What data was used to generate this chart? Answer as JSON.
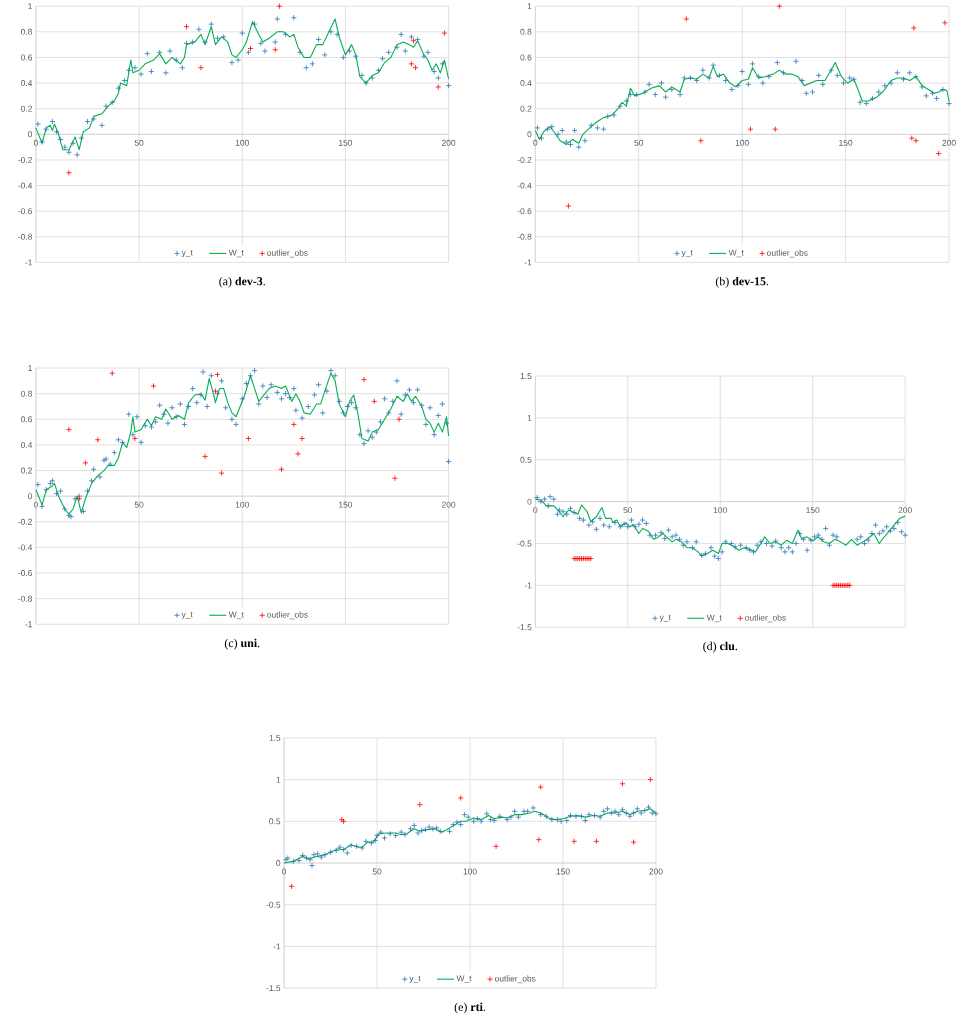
{
  "chart_data": [
    {
      "type": "scatter",
      "title": "(a) **dev-3**.",
      "xlim": [
        0,
        200
      ],
      "xticks": [
        0,
        50,
        100,
        150,
        200
      ],
      "ylim": [
        -1,
        1
      ],
      "yticks": [
        -1,
        -0.8,
        -0.6,
        -0.4,
        -0.2,
        0,
        0.2,
        0.4,
        0.6,
        0.8,
        1
      ],
      "grid": true,
      "legend": "bottom",
      "series": [
        {
          "name": "y_t",
          "type": "scatter",
          "marker": "cross",
          "color": "#2e75b6",
          "x": [
            1,
            3,
            5,
            8,
            10,
            12,
            14,
            16,
            18,
            20,
            22,
            25,
            28,
            32,
            34,
            37,
            40,
            43,
            45,
            48,
            51,
            54,
            56,
            60,
            63,
            65,
            68,
            71,
            73,
            76,
            79,
            82,
            85,
            88,
            91,
            95,
            98,
            100,
            103,
            106,
            109,
            111,
            116,
            117,
            121,
            125,
            128,
            131,
            134,
            137,
            140,
            143,
            146,
            149,
            152,
            155,
            158,
            160,
            163,
            166,
            168,
            171,
            175,
            177,
            179,
            182,
            185,
            188,
            190,
            193,
            195,
            197,
            200
          ],
          "values": [
            0.08,
            -0.06,
            0.04,
            0.1,
            0.02,
            -0.04,
            -0.1,
            -0.14,
            -0.07,
            -0.16,
            -0.03,
            0.1,
            0.12,
            0.07,
            0.22,
            0.25,
            0.36,
            0.42,
            0.5,
            0.52,
            0.47,
            0.63,
            0.49,
            0.64,
            0.48,
            0.65,
            0.58,
            0.52,
            0.71,
            0.72,
            0.82,
            0.72,
            0.86,
            0.75,
            0.76,
            0.56,
            0.58,
            0.79,
            0.64,
            0.86,
            0.71,
            0.65,
            0.72,
            0.9,
            0.78,
            0.91,
            0.64,
            0.52,
            0.55,
            0.74,
            0.62,
            0.8,
            0.78,
            0.6,
            0.65,
            0.61,
            0.46,
            0.4,
            0.44,
            0.5,
            0.59,
            0.64,
            0.68,
            0.78,
            0.65,
            0.76,
            0.74,
            0.61,
            0.64,
            0.49,
            0.44,
            0.55,
            0.38
          ]
        },
        {
          "name": "W_t",
          "type": "line",
          "marker": "none",
          "color": "#00b050",
          "x": [
            0,
            3,
            5,
            7,
            8,
            9,
            11,
            13,
            16,
            19,
            21,
            23,
            26,
            28,
            32,
            35,
            38,
            40,
            41,
            44,
            46,
            47,
            50,
            53,
            57,
            60,
            63,
            66,
            70,
            72,
            73,
            77,
            80,
            82,
            85,
            87,
            90,
            93,
            95,
            97,
            100,
            102,
            105,
            108,
            110,
            113,
            117,
            120,
            123,
            125,
            127,
            130,
            133,
            136,
            139,
            142,
            145,
            147,
            150,
            153,
            155,
            157,
            160,
            163,
            166,
            169,
            172,
            175,
            178,
            181,
            183,
            185,
            188,
            190,
            192,
            194,
            196,
            198,
            200
          ],
          "values": [
            0.05,
            -0.07,
            0.05,
            0.07,
            0.03,
            0.08,
            0.0,
            -0.12,
            -0.12,
            -0.02,
            -0.12,
            0.02,
            0.05,
            0.14,
            0.16,
            0.22,
            0.26,
            0.32,
            0.4,
            0.38,
            0.58,
            0.48,
            0.5,
            0.55,
            0.58,
            0.63,
            0.55,
            0.6,
            0.55,
            0.6,
            0.7,
            0.72,
            0.78,
            0.7,
            0.84,
            0.7,
            0.76,
            0.72,
            0.62,
            0.6,
            0.66,
            0.72,
            0.88,
            0.78,
            0.72,
            0.75,
            0.8,
            0.8,
            0.76,
            0.78,
            0.68,
            0.6,
            0.6,
            0.7,
            0.7,
            0.8,
            0.9,
            0.76,
            0.62,
            0.7,
            0.62,
            0.45,
            0.4,
            0.46,
            0.48,
            0.56,
            0.6,
            0.7,
            0.72,
            0.7,
            0.68,
            0.73,
            0.62,
            0.58,
            0.5,
            0.55,
            0.48,
            0.58,
            0.43
          ]
        },
        {
          "name": "outlier_obs",
          "type": "scatter",
          "marker": "cross",
          "color": "#ff0000",
          "x": [
            16,
            73,
            80,
            104,
            116,
            118,
            182,
            183,
            184,
            195,
            198
          ],
          "values": [
            -0.3,
            0.84,
            0.52,
            0.67,
            0.66,
            1.0,
            0.55,
            0.73,
            0.52,
            0.37,
            0.79
          ]
        }
      ]
    },
    {
      "type": "scatter",
      "title": "(b) **dev-15**.",
      "xlim": [
        0,
        200
      ],
      "xticks": [
        0,
        50,
        100,
        150,
        200
      ],
      "ylim": [
        -1,
        1
      ],
      "yticks": [
        -1,
        -0.8,
        -0.6,
        -0.4,
        -0.2,
        0,
        0.2,
        0.4,
        0.6,
        0.8,
        1
      ],
      "grid": true,
      "legend": "bottom",
      "series": [
        {
          "name": "y_t",
          "type": "scatter",
          "marker": "cross",
          "color": "#2e75b6",
          "x": [
            1,
            3,
            6,
            8,
            11,
            13,
            15,
            17,
            19,
            21,
            24,
            27,
            30,
            33,
            35,
            38,
            41,
            44,
            46,
            49,
            53,
            55,
            58,
            61,
            63,
            66,
            70,
            72,
            75,
            78,
            81,
            84,
            86,
            89,
            92,
            95,
            98,
            100,
            103,
            105,
            108,
            110,
            113,
            117,
            120,
            126,
            129,
            131,
            134,
            137,
            139,
            143,
            146,
            149,
            152,
            154,
            157,
            160,
            163,
            166,
            169,
            172,
            175,
            178,
            181,
            184,
            187,
            189,
            192,
            194,
            197,
            200
          ],
          "values": [
            0.05,
            -0.03,
            0.04,
            0.06,
            0.0,
            0.03,
            -0.06,
            -0.08,
            0.03,
            -0.1,
            -0.05,
            0.07,
            0.05,
            0.04,
            0.14,
            0.15,
            0.22,
            0.26,
            0.31,
            0.31,
            0.33,
            0.39,
            0.31,
            0.4,
            0.29,
            0.35,
            0.31,
            0.44,
            0.44,
            0.42,
            0.5,
            0.44,
            0.54,
            0.46,
            0.42,
            0.35,
            0.38,
            0.49,
            0.39,
            0.55,
            0.45,
            0.4,
            0.45,
            0.56,
            0.48,
            0.57,
            0.42,
            0.32,
            0.33,
            0.46,
            0.39,
            0.5,
            0.46,
            0.4,
            0.44,
            0.43,
            0.25,
            0.24,
            0.28,
            0.33,
            0.38,
            0.4,
            0.48,
            0.43,
            0.48,
            0.45,
            0.37,
            0.3,
            0.32,
            0.28,
            0.35,
            0.24
          ]
        },
        {
          "name": "W_t",
          "type": "line",
          "marker": "none",
          "color": "#00b050",
          "x": [
            0,
            2,
            4,
            7,
            9,
            12,
            15,
            18,
            21,
            23,
            27,
            30,
            33,
            37,
            40,
            42,
            44,
            46,
            48,
            52,
            56,
            60,
            63,
            66,
            70,
            72,
            75,
            78,
            81,
            84,
            86,
            88,
            91,
            94,
            97,
            100,
            103,
            105,
            108,
            111,
            115,
            118,
            121,
            124,
            127,
            130,
            133,
            136,
            140,
            143,
            145,
            148,
            151,
            154,
            156,
            158,
            161,
            165,
            168,
            172,
            175,
            178,
            181,
            184,
            187,
            190,
            193,
            195,
            197,
            199,
            200
          ],
          "values": [
            0.03,
            -0.04,
            0.02,
            0.06,
            0.02,
            -0.05,
            -0.08,
            -0.04,
            -0.07,
            0.0,
            0.06,
            0.1,
            0.13,
            0.15,
            0.2,
            0.25,
            0.22,
            0.36,
            0.3,
            0.32,
            0.36,
            0.38,
            0.33,
            0.37,
            0.33,
            0.43,
            0.44,
            0.43,
            0.47,
            0.44,
            0.53,
            0.45,
            0.47,
            0.4,
            0.37,
            0.42,
            0.43,
            0.52,
            0.44,
            0.45,
            0.47,
            0.5,
            0.47,
            0.47,
            0.45,
            0.38,
            0.4,
            0.42,
            0.42,
            0.5,
            0.56,
            0.45,
            0.4,
            0.43,
            0.35,
            0.26,
            0.26,
            0.29,
            0.33,
            0.42,
            0.44,
            0.44,
            0.42,
            0.45,
            0.38,
            0.35,
            0.32,
            0.33,
            0.35,
            0.34,
            0.26
          ]
        },
        {
          "name": "outlier_obs",
          "type": "scatter",
          "marker": "cross",
          "color": "#ff0000",
          "x": [
            16,
            73,
            80,
            104,
            116,
            118,
            182,
            183,
            184,
            195,
            198
          ],
          "values": [
            -0.56,
            0.9,
            -0.05,
            0.04,
            0.04,
            1.0,
            -0.03,
            0.83,
            -0.05,
            -0.15,
            0.87
          ]
        }
      ]
    },
    {
      "type": "scatter",
      "title": "(c) **uni**.",
      "xlim": [
        0,
        200
      ],
      "xticks": [
        0,
        50,
        100,
        150,
        200
      ],
      "ylim": [
        -1,
        1
      ],
      "yticks": [
        -1,
        -0.8,
        -0.6,
        -0.4,
        -0.2,
        0,
        0.2,
        0.4,
        0.6,
        0.8,
        1
      ],
      "grid": true,
      "legend": "bottom",
      "series": [
        {
          "name": "y_t",
          "type": "scatter",
          "marker": "cross",
          "color": "#2e75b6",
          "x": [
            1,
            3,
            5,
            7,
            8,
            10,
            12,
            14,
            16,
            17,
            19,
            21,
            23,
            25,
            27,
            28,
            31,
            33,
            34,
            36,
            38,
            40,
            42,
            45,
            47,
            49,
            51,
            53,
            56,
            58,
            60,
            62,
            64,
            66,
            68,
            70,
            72,
            74,
            76,
            78,
            80,
            81,
            83,
            85,
            88,
            90,
            92,
            95,
            97,
            100,
            102,
            104,
            106,
            108,
            110,
            112,
            114,
            117,
            119,
            121,
            123,
            125,
            126,
            129,
            132,
            135,
            137,
            139,
            141,
            143,
            145,
            147,
            149,
            151,
            153,
            155,
            157,
            159,
            161,
            163,
            165,
            167,
            169,
            171,
            173,
            175,
            177,
            179,
            181,
            183,
            185,
            187,
            189,
            191,
            193,
            195,
            197,
            199,
            200
          ],
          "values": [
            0.09,
            -0.08,
            0.05,
            0.1,
            0.12,
            0.02,
            0.04,
            -0.1,
            -0.15,
            -0.16,
            -0.02,
            0.0,
            -0.12,
            0.04,
            0.12,
            0.21,
            0.15,
            0.28,
            0.29,
            0.25,
            0.34,
            0.44,
            0.42,
            0.64,
            0.48,
            0.62,
            0.42,
            0.55,
            0.54,
            0.58,
            0.71,
            0.64,
            0.57,
            0.69,
            0.62,
            0.72,
            0.56,
            0.7,
            0.84,
            0.73,
            0.79,
            0.97,
            0.7,
            0.94,
            0.8,
            0.9,
            0.69,
            0.6,
            0.56,
            0.76,
            0.88,
            0.94,
            0.98,
            0.72,
            0.86,
            0.77,
            0.87,
            0.81,
            0.76,
            0.8,
            0.77,
            0.84,
            0.67,
            0.61,
            0.7,
            0.79,
            0.87,
            0.65,
            0.82,
            0.98,
            0.94,
            0.74,
            0.65,
            0.7,
            0.73,
            0.69,
            0.48,
            0.41,
            0.51,
            0.46,
            0.5,
            0.58,
            0.76,
            0.65,
            0.74,
            0.9,
            0.64,
            0.79,
            0.83,
            0.73,
            0.83,
            0.71,
            0.56,
            0.69,
            0.48,
            0.63,
            0.72,
            0.57,
            0.27
          ]
        },
        {
          "name": "W_t",
          "type": "line",
          "marker": "none",
          "color": "#00b050",
          "x": [
            0,
            3,
            5,
            8,
            9,
            11,
            14,
            16,
            18,
            20,
            22,
            24,
            27,
            30,
            33,
            35,
            38,
            40,
            42,
            44,
            46,
            47,
            48,
            51,
            54,
            56,
            58,
            61,
            63,
            66,
            69,
            72,
            74,
            77,
            80,
            82,
            84,
            86,
            87,
            89,
            91,
            93,
            95,
            97,
            99,
            101,
            104,
            106,
            108,
            111,
            113,
            116,
            119,
            121,
            124,
            126,
            128,
            130,
            133,
            136,
            138,
            140,
            143,
            145,
            147,
            150,
            152,
            154,
            156,
            158,
            161,
            163,
            166,
            169,
            172,
            175,
            178,
            180,
            182,
            184,
            187,
            189,
            191,
            193,
            195,
            197,
            199,
            200
          ],
          "values": [
            0.05,
            -0.07,
            0.05,
            0.08,
            0.1,
            0.0,
            -0.1,
            -0.14,
            -0.1,
            0.0,
            -0.13,
            -0.02,
            0.1,
            0.16,
            0.2,
            0.24,
            0.24,
            0.3,
            0.42,
            0.38,
            0.5,
            0.62,
            0.5,
            0.52,
            0.6,
            0.55,
            0.62,
            0.6,
            0.68,
            0.6,
            0.63,
            0.6,
            0.73,
            0.79,
            0.8,
            0.75,
            0.92,
            0.8,
            0.73,
            0.84,
            0.84,
            0.73,
            0.65,
            0.62,
            0.7,
            0.78,
            0.94,
            0.84,
            0.74,
            0.8,
            0.84,
            0.86,
            0.84,
            0.86,
            0.74,
            0.8,
            0.74,
            0.65,
            0.64,
            0.72,
            0.72,
            0.82,
            0.96,
            0.9,
            0.72,
            0.62,
            0.74,
            0.79,
            0.65,
            0.45,
            0.43,
            0.5,
            0.52,
            0.6,
            0.68,
            0.78,
            0.74,
            0.8,
            0.74,
            0.78,
            0.7,
            0.6,
            0.57,
            0.5,
            0.57,
            0.5,
            0.62,
            0.47
          ]
        },
        {
          "name": "outlier_obs",
          "type": "scatter",
          "marker": "cross",
          "color": "#ff0000",
          "x": [
            16,
            21,
            24,
            30,
            37,
            48,
            57,
            82,
            87,
            88,
            90,
            103,
            119,
            125,
            127,
            129,
            159,
            164,
            174,
            176
          ],
          "values": [
            0.52,
            -0.02,
            0.26,
            0.44,
            0.96,
            0.45,
            0.86,
            0.31,
            0.82,
            0.95,
            0.18,
            0.45,
            0.21,
            0.56,
            0.33,
            0.45,
            0.91,
            0.74,
            0.14,
            0.6
          ]
        }
      ]
    },
    {
      "type": "scatter",
      "title": "(d) **clu**.",
      "xlim": [
        0,
        200
      ],
      "xticks": [
        0,
        50,
        100,
        150,
        200
      ],
      "ylim": [
        -1.5,
        1.5
      ],
      "yticks": [
        -1.5,
        -1,
        -0.5,
        0,
        0.5,
        1,
        1.5
      ],
      "grid": true,
      "legend": "bottom",
      "series": [
        {
          "name": "y_t",
          "type": "scatter",
          "marker": "cross",
          "color": "#2e75b6",
          "x": [
            1,
            3,
            5,
            7,
            8,
            10,
            12,
            13,
            15,
            17,
            19,
            21,
            24,
            26,
            29,
            31,
            33,
            35,
            37,
            40,
            43,
            46,
            48,
            50,
            52,
            54,
            56,
            58,
            60,
            62,
            65,
            68,
            70,
            72,
            74,
            76,
            78,
            80,
            82,
            85,
            87,
            90,
            92,
            95,
            97,
            99,
            101,
            103,
            106,
            108,
            111,
            114,
            116,
            118,
            120,
            122,
            125,
            128,
            130,
            133,
            135,
            137,
            139,
            141,
            143,
            145,
            147,
            149,
            151,
            153,
            155,
            157,
            159,
            161,
            163,
            174,
            176,
            178,
            180,
            182,
            184,
            186,
            188,
            190,
            192,
            194,
            196,
            198,
            200
          ],
          "values": [
            0.05,
            0.0,
            0.03,
            -0.05,
            0.06,
            0.03,
            -0.15,
            -0.1,
            -0.12,
            -0.15,
            -0.08,
            -0.13,
            -0.2,
            -0.22,
            -0.28,
            -0.24,
            -0.33,
            -0.2,
            -0.28,
            -0.3,
            -0.25,
            -0.3,
            -0.27,
            -0.3,
            -0.22,
            -0.3,
            -0.27,
            -0.22,
            -0.26,
            -0.4,
            -0.4,
            -0.37,
            -0.44,
            -0.34,
            -0.42,
            -0.4,
            -0.45,
            -0.52,
            -0.48,
            -0.55,
            -0.48,
            -0.64,
            -0.62,
            -0.55,
            -0.65,
            -0.68,
            -0.6,
            -0.48,
            -0.5,
            -0.54,
            -0.52,
            -0.55,
            -0.58,
            -0.6,
            -0.52,
            -0.48,
            -0.5,
            -0.53,
            -0.47,
            -0.55,
            -0.6,
            -0.55,
            -0.6,
            -0.5,
            -0.38,
            -0.45,
            -0.58,
            -0.46,
            -0.42,
            -0.4,
            -0.45,
            -0.32,
            -0.52,
            -0.4,
            -0.42,
            -0.45,
            -0.42,
            -0.5,
            -0.46,
            -0.38,
            -0.28,
            -0.38,
            -0.35,
            -0.3,
            -0.35,
            -0.32,
            -0.25,
            -0.36,
            -0.4
          ]
        },
        {
          "name": "W_t",
          "type": "line",
          "marker": "none",
          "color": "#00b050",
          "x": [
            0,
            3,
            6,
            10,
            13,
            15,
            18,
            20,
            23,
            25,
            28,
            30,
            33,
            36,
            38,
            41,
            42,
            44,
            46,
            49,
            51,
            53,
            56,
            58,
            61,
            64,
            66,
            69,
            71,
            74,
            76,
            79,
            82,
            85,
            88,
            90,
            93,
            96,
            99,
            101,
            104,
            107,
            110,
            113,
            116,
            119,
            122,
            124,
            127,
            130,
            133,
            136,
            139,
            142,
            144,
            147,
            150,
            153,
            156,
            159,
            162,
            165,
            168,
            171,
            174,
            177,
            180,
            183,
            186,
            188,
            191,
            194,
            197,
            200
          ],
          "values": [
            0.03,
            0.02,
            -0.05,
            -0.05,
            -0.12,
            -0.18,
            -0.1,
            -0.12,
            -0.15,
            -0.04,
            -0.12,
            -0.24,
            -0.18,
            -0.07,
            -0.2,
            -0.2,
            -0.25,
            -0.22,
            -0.3,
            -0.25,
            -0.3,
            -0.27,
            -0.38,
            -0.32,
            -0.35,
            -0.45,
            -0.43,
            -0.38,
            -0.42,
            -0.48,
            -0.45,
            -0.48,
            -0.55,
            -0.55,
            -0.6,
            -0.65,
            -0.62,
            -0.58,
            -0.62,
            -0.5,
            -0.5,
            -0.53,
            -0.58,
            -0.55,
            -0.57,
            -0.6,
            -0.5,
            -0.42,
            -0.5,
            -0.48,
            -0.52,
            -0.46,
            -0.5,
            -0.34,
            -0.44,
            -0.42,
            -0.47,
            -0.42,
            -0.48,
            -0.5,
            -0.45,
            -0.48,
            -0.52,
            -0.45,
            -0.52,
            -0.48,
            -0.44,
            -0.38,
            -0.5,
            -0.44,
            -0.36,
            -0.28,
            -0.2,
            -0.17
          ]
        },
        {
          "name": "outlier_obs",
          "type": "scatter",
          "marker": "cross",
          "color": "#ff0000",
          "x": [
            21,
            22,
            23,
            24,
            25,
            26,
            27,
            28,
            29,
            30,
            161,
            162,
            163,
            164,
            165,
            166,
            167,
            168,
            169,
            170
          ],
          "values": [
            -0.68,
            -0.68,
            -0.68,
            -0.68,
            -0.68,
            -0.68,
            -0.68,
            -0.68,
            -0.68,
            -0.68,
            -1,
            -1,
            -1,
            -1,
            -1,
            -1,
            -1,
            -1,
            -1,
            -1
          ]
        }
      ]
    },
    {
      "type": "scatter",
      "title": "(e) **rti**.",
      "xlim": [
        0,
        200
      ],
      "xticks": [
        0,
        50,
        100,
        150,
        200
      ],
      "ylim": [
        -1.5,
        1.5
      ],
      "yticks": [
        -1.5,
        -1,
        -0.5,
        0,
        0.5,
        1,
        1.5
      ],
      "grid": true,
      "legend": "bottom",
      "series": [
        {
          "name": "y_t",
          "type": "scatter",
          "marker": "cross",
          "color": "#2e75b6",
          "x": [
            1,
            2,
            5,
            8,
            10,
            12,
            14,
            15,
            16,
            18,
            20,
            22,
            25,
            28,
            30,
            32,
            34,
            36,
            39,
            42,
            44,
            47,
            49,
            50,
            52,
            54,
            57,
            60,
            63,
            65,
            68,
            70,
            72,
            74,
            76,
            78,
            80,
            82,
            84,
            89,
            91,
            93,
            95,
            97,
            99,
            102,
            104,
            106,
            109,
            111,
            113,
            116,
            120,
            122,
            124,
            126,
            129,
            131,
            134,
            138,
            141,
            144,
            147,
            149,
            152,
            154,
            157,
            160,
            162,
            164,
            167,
            170,
            172,
            174,
            176,
            178,
            180,
            182,
            184,
            186,
            188,
            190,
            192,
            194,
            196,
            198,
            200
          ],
          "values": [
            0.04,
            0.06,
            0.02,
            0.03,
            0.09,
            0.06,
            0.04,
            -0.03,
            0.1,
            0.11,
            0.07,
            0.1,
            0.13,
            0.15,
            0.19,
            0.16,
            0.12,
            0.21,
            0.2,
            0.18,
            0.26,
            0.24,
            0.27,
            0.33,
            0.37,
            0.3,
            0.35,
            0.33,
            0.37,
            0.34,
            0.41,
            0.45,
            0.36,
            0.39,
            0.4,
            0.43,
            0.41,
            0.42,
            0.38,
            0.38,
            0.46,
            0.49,
            0.46,
            0.58,
            0.55,
            0.5,
            0.53,
            0.5,
            0.59,
            0.52,
            0.51,
            0.56,
            0.52,
            0.55,
            0.62,
            0.55,
            0.62,
            0.62,
            0.66,
            0.58,
            0.56,
            0.52,
            0.52,
            0.5,
            0.51,
            0.57,
            0.56,
            0.56,
            0.51,
            0.58,
            0.57,
            0.55,
            0.62,
            0.65,
            0.6,
            0.62,
            0.58,
            0.64,
            0.6,
            0.56,
            0.6,
            0.65,
            0.6,
            0.63,
            0.67,
            0.6,
            0.59
          ]
        },
        {
          "name": "W_t",
          "type": "line",
          "marker": "none",
          "color": "#00b050",
          "x": [
            0,
            5,
            10,
            13,
            18,
            22,
            25,
            29,
            32,
            36,
            40,
            42,
            45,
            48,
            51,
            55,
            60,
            63,
            66,
            70,
            73,
            77,
            81,
            85,
            89,
            92,
            95,
            98,
            102,
            106,
            110,
            113,
            117,
            120,
            124,
            128,
            132,
            135,
            139,
            142,
            146,
            150,
            154,
            158,
            162,
            166,
            170,
            174,
            178,
            182,
            186,
            190,
            194,
            197,
            200
          ],
          "values": [
            0.0,
            0.02,
            0.08,
            0.05,
            0.08,
            0.1,
            0.13,
            0.17,
            0.16,
            0.22,
            0.19,
            0.19,
            0.25,
            0.25,
            0.35,
            0.36,
            0.36,
            0.34,
            0.35,
            0.41,
            0.38,
            0.4,
            0.41,
            0.37,
            0.42,
            0.46,
            0.5,
            0.5,
            0.54,
            0.52,
            0.57,
            0.53,
            0.55,
            0.54,
            0.58,
            0.58,
            0.6,
            0.62,
            0.59,
            0.54,
            0.52,
            0.53,
            0.56,
            0.57,
            0.55,
            0.57,
            0.56,
            0.6,
            0.6,
            0.62,
            0.58,
            0.62,
            0.63,
            0.65,
            0.6
          ]
        },
        {
          "name": "outlier_obs",
          "type": "scatter",
          "marker": "cross",
          "color": "#ff0000",
          "x": [
            4,
            31,
            32,
            73,
            95,
            114,
            137,
            138,
            156,
            168,
            182,
            188,
            197
          ],
          "values": [
            -0.28,
            0.52,
            0.5,
            0.7,
            0.78,
            0.2,
            0.28,
            0.91,
            0.26,
            0.26,
            0.95,
            0.25,
            1.0
          ]
        }
      ]
    }
  ]
}
